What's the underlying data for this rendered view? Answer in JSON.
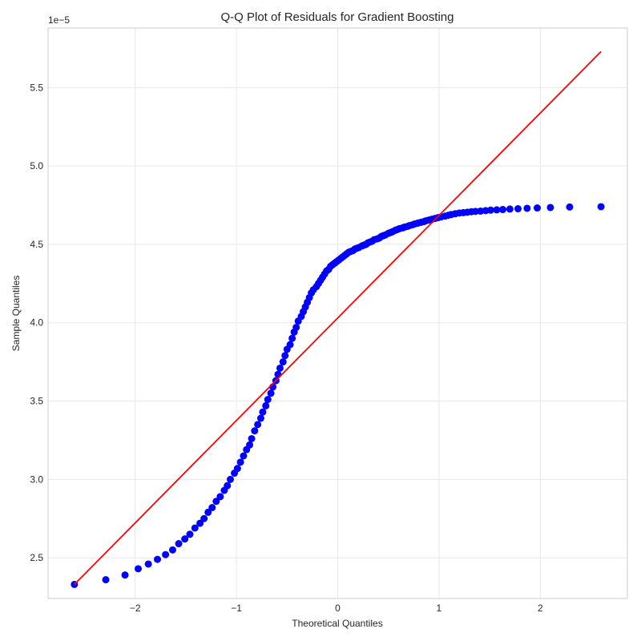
{
  "chart_data": {
    "type": "scatter",
    "title": "Q-Q Plot of Residuals for Gradient Boosting",
    "xlabel": "Theoretical Quantiles",
    "ylabel": "Sample Quantiles",
    "y_offset_label": "1e−5",
    "xlim": [
      -2.86,
      2.86
    ],
    "ylim": [
      2.24,
      5.88
    ],
    "y_scale_factor": 1e-05,
    "xticks": [
      -2,
      -1,
      0,
      1,
      2
    ],
    "xtick_labels": [
      "−2",
      "−1",
      "0",
      "1",
      "2"
    ],
    "yticks": [
      2.5,
      3.0,
      3.5,
      4.0,
      4.5,
      5.0,
      5.5
    ],
    "ytick_labels": [
      "2.5",
      "3.0",
      "3.5",
      "4.0",
      "4.5",
      "5.0",
      "5.5"
    ],
    "grid": true,
    "legend": "none",
    "colors": {
      "points": "#0000ff",
      "line": "#ff0000",
      "grid": "#e8e8e8",
      "frame": "#cccccc"
    },
    "reference_line": {
      "x": [
        -2.6,
        2.6
      ],
      "y": [
        2.33,
        5.73
      ]
    },
    "series": [
      {
        "x": [
          -2.6,
          -2.29,
          -2.1,
          -1.97,
          -1.87,
          -1.78,
          -1.7,
          -1.63,
          -1.57,
          -1.51,
          -1.46,
          -1.41,
          -1.36,
          -1.32,
          -1.28,
          -1.24,
          -1.2,
          -1.16,
          -1.12,
          -1.09,
          -1.06,
          -1.02,
          -0.99,
          -0.96,
          -0.93,
          -0.9,
          -0.87,
          -0.85,
          -0.82,
          -0.79,
          -0.76,
          -0.74,
          -0.71,
          -0.69,
          -0.66,
          -0.64,
          -0.61,
          -0.59,
          -0.57,
          -0.54,
          -0.52,
          -0.5,
          -0.47,
          -0.45,
          -0.43,
          -0.41,
          -0.39,
          -0.36,
          -0.34,
          -0.32,
          -0.3,
          -0.28,
          -0.26,
          -0.24,
          -0.21,
          -0.19,
          -0.17,
          -0.15,
          -0.13,
          -0.11,
          -0.09,
          -0.07,
          -0.05,
          -0.03,
          -0.01,
          0.01,
          0.03,
          0.05,
          0.07,
          0.09,
          0.11,
          0.13,
          0.15,
          0.17,
          0.19,
          0.21,
          0.24,
          0.26,
          0.28,
          0.3,
          0.32,
          0.34,
          0.36,
          0.39,
          0.41,
          0.43,
          0.45,
          0.47,
          0.5,
          0.52,
          0.54,
          0.57,
          0.59,
          0.61,
          0.64,
          0.66,
          0.69,
          0.71,
          0.74,
          0.76,
          0.79,
          0.82,
          0.85,
          0.87,
          0.9,
          0.93,
          0.96,
          0.99,
          1.02,
          1.06,
          1.09,
          1.12,
          1.16,
          1.2,
          1.24,
          1.28,
          1.32,
          1.36,
          1.41,
          1.46,
          1.51,
          1.57,
          1.63,
          1.7,
          1.78,
          1.87,
          1.97,
          2.1,
          2.29,
          2.6
        ],
        "y": [
          2.33,
          2.36,
          2.39,
          2.43,
          2.46,
          2.49,
          2.52,
          2.55,
          2.59,
          2.62,
          2.65,
          2.69,
          2.72,
          2.75,
          2.79,
          2.82,
          2.86,
          2.89,
          2.93,
          2.96,
          3.0,
          3.04,
          3.07,
          3.11,
          3.15,
          3.19,
          3.22,
          3.26,
          3.31,
          3.35,
          3.39,
          3.43,
          3.47,
          3.51,
          3.55,
          3.59,
          3.63,
          3.67,
          3.71,
          3.75,
          3.79,
          3.83,
          3.86,
          3.9,
          3.94,
          3.97,
          4.01,
          4.04,
          4.07,
          4.1,
          4.13,
          4.16,
          4.19,
          4.21,
          4.23,
          4.25,
          4.27,
          4.29,
          4.31,
          4.33,
          4.34,
          4.36,
          4.37,
          4.38,
          4.39,
          4.4,
          4.41,
          4.42,
          4.43,
          4.44,
          4.45,
          4.455,
          4.46,
          4.47,
          4.475,
          4.48,
          4.49,
          4.495,
          4.5,
          4.51,
          4.515,
          4.52,
          4.53,
          4.535,
          4.54,
          4.55,
          4.555,
          4.56,
          4.57,
          4.575,
          4.58,
          4.59,
          4.595,
          4.6,
          4.605,
          4.61,
          4.615,
          4.62,
          4.625,
          4.63,
          4.635,
          4.64,
          4.645,
          4.65,
          4.655,
          4.66,
          4.665,
          4.67,
          4.675,
          4.68,
          4.685,
          4.69,
          4.695,
          4.7,
          4.702,
          4.705,
          4.708,
          4.71,
          4.712,
          4.715,
          4.718,
          4.72,
          4.722,
          4.725,
          4.727,
          4.73,
          4.732,
          4.735,
          4.738,
          4.74
        ]
      }
    ]
  }
}
